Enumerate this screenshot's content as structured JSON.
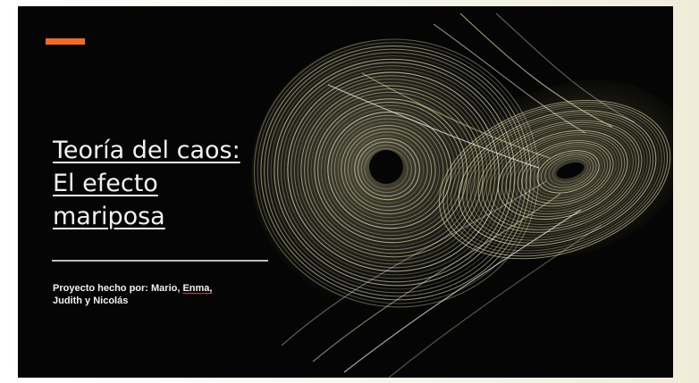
{
  "slide": {
    "title_lines": [
      "Teoría del caos:",
      "El efecto",
      "mariposa"
    ],
    "subtitle_prefix": "Proyecto hecho por: Mario, ",
    "subtitle_highlight": "Enma,",
    "subtitle_line2": "Judith y Nicolás",
    "accent_color": "#f26b21",
    "background_color": "#050505",
    "attractor_icon": "lorenz-attractor-icon"
  }
}
